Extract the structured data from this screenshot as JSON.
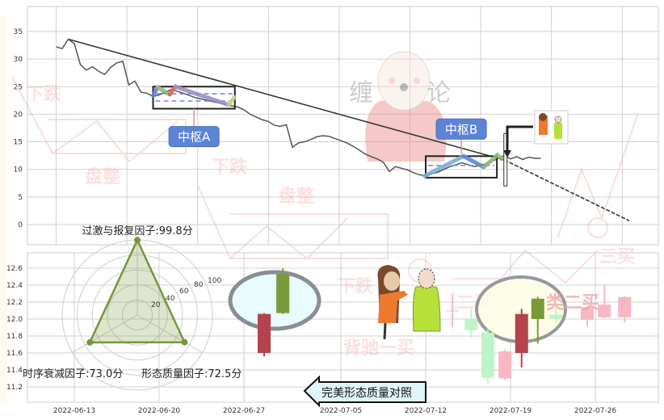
{
  "colors": {
    "price": "#555555",
    "trend": "#2f3a2f",
    "grid": "#d0d0d0",
    "hub_label_bg": "#5b84d6",
    "up": "#7a9a3a",
    "down": "#b5434b",
    "faint_up": "#bdf5c6",
    "faint_down": "#f7b8c4",
    "radar": "#76973b",
    "watermark": "#f3b6b6"
  },
  "watermarks": [
    "下跌",
    "盘整",
    "下跌",
    "盘整",
    "下跌",
    "背驰一买",
    "二买",
    "类二买",
    "三买",
    "缠",
    "论"
  ],
  "callout": {
    "label": "完美形态质量对照",
    "icon": "left-arrow-icon"
  },
  "chart_data": [
    {
      "type": "line",
      "panel": "top",
      "yticks": [
        0,
        5,
        10,
        15,
        20,
        25,
        30,
        35
      ],
      "ylim": [
        0,
        35
      ],
      "grid": true,
      "price": [
        [
          "2022-06-11 12:00",
          32.2
        ],
        [
          "2022-06-12 00:00",
          31.9
        ],
        [
          "2022-06-12 12:00",
          33.6
        ],
        [
          "2022-06-13 00:00",
          32.8
        ],
        [
          "2022-06-13 12:00",
          29.0
        ],
        [
          "2022-06-14 00:00",
          28.0
        ],
        [
          "2022-06-14 12:00",
          28.6
        ],
        [
          "2022-06-15 00:00",
          27.8
        ],
        [
          "2022-06-15 12:00",
          27.2
        ],
        [
          "2022-06-16 00:00",
          28.5
        ],
        [
          "2022-06-16 12:00",
          29.3
        ],
        [
          "2022-06-17 00:00",
          29.6
        ],
        [
          "2022-06-17 12:00",
          25.3
        ],
        [
          "2022-06-18 00:00",
          26.0
        ],
        [
          "2022-06-18 12:00",
          24.0
        ],
        [
          "2022-06-19 00:00",
          23.8
        ],
        [
          "2022-06-19 12:00",
          23.2
        ],
        [
          "2022-06-20 00:00",
          23.5
        ],
        [
          "2022-06-21 00:00",
          24.5
        ],
        [
          "2022-06-22 00:00",
          23.8
        ],
        [
          "2022-06-23 00:00",
          23.0
        ],
        [
          "2022-06-24 00:00",
          22.5
        ],
        [
          "2022-06-25 00:00",
          22.0
        ],
        [
          "2022-06-26 00:00",
          21.5
        ],
        [
          "2022-06-26 12:00",
          21.3
        ],
        [
          "2022-06-27 00:00",
          20.8
        ],
        [
          "2022-06-27 12:00",
          20.0
        ],
        [
          "2022-06-28 00:00",
          19.5
        ],
        [
          "2022-06-28 12:00",
          19.0
        ],
        [
          "2022-06-29 00:00",
          18.7
        ],
        [
          "2022-06-29 12:00",
          18.0
        ],
        [
          "2022-06-30 00:00",
          17.8
        ],
        [
          "2022-06-30 12:00",
          18.1
        ],
        [
          "2022-07-01 00:00",
          14.0
        ],
        [
          "2022-07-01 12:00",
          14.8
        ],
        [
          "2022-07-02 00:00",
          15.0
        ],
        [
          "2022-07-02 12:00",
          15.4
        ],
        [
          "2022-07-03 00:00",
          15.9
        ],
        [
          "2022-07-03 12:00",
          16.1
        ],
        [
          "2022-07-04 00:00",
          16.0
        ],
        [
          "2022-07-04 12:00",
          15.6
        ],
        [
          "2022-07-05 00:00",
          15.2
        ],
        [
          "2022-07-05 12:00",
          14.8
        ],
        [
          "2022-07-06 00:00",
          14.2
        ],
        [
          "2022-07-06 12:00",
          13.5
        ],
        [
          "2022-07-07 00:00",
          12.8
        ],
        [
          "2022-07-07 12:00",
          12.3
        ],
        [
          "2022-07-08 00:00",
          11.9
        ],
        [
          "2022-07-08 12:00",
          11.3
        ],
        [
          "2022-07-09 00:00",
          9.6
        ],
        [
          "2022-07-09 12:00",
          10.5
        ],
        [
          "2022-07-10 00:00",
          10.2
        ],
        [
          "2022-07-10 12:00",
          9.9
        ],
        [
          "2022-07-11 00:00",
          9.4
        ],
        [
          "2022-07-11 12:00",
          9.0
        ],
        [
          "2022-07-12 00:00",
          8.9
        ],
        [
          "2022-07-13 00:00",
          9.5
        ],
        [
          "2022-07-14 00:00",
          10.5
        ],
        [
          "2022-07-15 00:00",
          11.2
        ],
        [
          "2022-07-16 00:00",
          10.5
        ],
        [
          "2022-07-17 00:00",
          11.0
        ],
        [
          "2022-07-18 00:00",
          12.0
        ],
        [
          "2022-07-18 12:00",
          12.5
        ],
        [
          "2022-07-19 00:00",
          11.9
        ],
        [
          "2022-07-19 12:00",
          12.3
        ],
        [
          "2022-07-20 00:00",
          11.8
        ],
        [
          "2022-07-20 12:00",
          12.2
        ],
        [
          "2022-07-21 00:00",
          12.0
        ],
        [
          "2022-07-21 12:00",
          12.0
        ]
      ],
      "trendline": {
        "start": [
          "2022-06-12 12:00",
          33.6
        ],
        "solid_end": [
          "2022-07-18 12:00",
          11.7
        ],
        "end": [
          "2022-07-28 19:00",
          0.7
        ]
      },
      "hubs": [
        {
          "label": "中枢A",
          "start": "2022-06-19 12:00",
          "end": "2022-06-26 06:00",
          "upper": 25.0,
          "lower": 21.0,
          "dashed": [
            23.7,
            22.4
          ],
          "label_side": "below",
          "strokes": [
            {
              "color": "#5b84d6",
              "points": [
                [
                  "2022-06-19 12:00",
                  23.4
                ],
                [
                  "2022-06-19 21:00",
                  24.9
                ]
              ]
            },
            {
              "color": "#8fb97a",
              "points": [
                [
                  "2022-06-19 21:00",
                  24.9
                ],
                [
                  "2022-06-20 21:00",
                  23.6
                ]
              ]
            },
            {
              "color": "#d9694f",
              "points": [
                [
                  "2022-06-20 21:00",
                  23.6
                ],
                [
                  "2022-06-21 08:00",
                  25.0
                ]
              ]
            },
            {
              "color": "#9b8ec4",
              "points": [
                [
                  "2022-06-21 08:00",
                  25.0
                ],
                [
                  "2022-06-25 18:00",
                  21.7
                ]
              ]
            },
            {
              "color": "#c5d48a",
              "points": [
                [
                  "2022-06-25 18:00",
                  21.7
                ],
                [
                  "2022-06-26 05:00",
                  23.1
                ]
              ]
            }
          ]
        },
        {
          "label": "中枢B",
          "start": "2022-07-12 00:00",
          "end": "2022-07-17 21:00",
          "upper": 12.4,
          "lower": 8.5,
          "dashed": [
            10.7
          ],
          "label_side": "above",
          "strokes": [
            {
              "color": "#7aaed0",
              "points": [
                [
                  "2022-07-11 22:00",
                  8.8
                ],
                [
                  "2022-07-15 03:00",
                  12.4
                ]
              ]
            },
            {
              "color": "#5b84d6",
              "points": [
                [
                  "2022-07-15 03:00",
                  12.4
                ],
                [
                  "2022-07-16 19:00",
                  10.4
                ]
              ]
            },
            {
              "color": "#8fb97a",
              "points": [
                [
                  "2022-07-16 19:00",
                  10.4
                ],
                [
                  "2022-07-17 22:00",
                  12.6
                ],
                [
                  "2022-07-18 06:00",
                  11.9
                ]
              ]
            }
          ]
        }
      ],
      "marker": {
        "date": "2022-07-18 14:00",
        "high": 16.5,
        "low": 7.0
      }
    },
    {
      "type": "candlestick",
      "panel": "bottom",
      "yticks": [
        11.2,
        11.4,
        11.6,
        11.8,
        12.0,
        12.2,
        12.4,
        12.6
      ],
      "ylim": [
        11.15,
        12.75
      ],
      "xticks": [
        "2022-06-13",
        "2022-06-20",
        "2022-06-27",
        "2022-07-05",
        "2022-07-12",
        "2022-07-19",
        "2022-07-26"
      ],
      "grid": true,
      "candles": [
        {
          "date": "2022-06-28 16:00",
          "open": 12.06,
          "close": 11.6,
          "high": 12.07,
          "low": 11.56,
          "style": "strong"
        },
        {
          "date": "2022-06-30 05:00",
          "open": 12.07,
          "close": 12.53,
          "high": 12.6,
          "low": 12.06,
          "style": "strong"
        },
        {
          "date": "2022-07-14 05:00",
          "open": 12.1,
          "close": 12.1,
          "high": 12.3,
          "low": 11.9,
          "style": "faint_down"
        },
        {
          "date": "2022-07-15 18:00",
          "open": 11.87,
          "close": 12.0,
          "high": 12.12,
          "low": 11.78,
          "style": "faint"
        },
        {
          "date": "2022-07-17 03:00",
          "open": 11.31,
          "close": 11.84,
          "high": 11.88,
          "low": 11.24,
          "style": "faint"
        },
        {
          "date": "2022-07-18 13:00",
          "open": 11.62,
          "close": 11.3,
          "high": 11.64,
          "low": 11.28,
          "style": "faint"
        },
        {
          "date": "2022-07-19 22:00",
          "open": 12.06,
          "close": 11.6,
          "high": 12.12,
          "low": 11.43,
          "style": "strong"
        },
        {
          "date": "2022-07-21 06:00",
          "open": 12.0,
          "close": 12.24,
          "high": 12.26,
          "low": 11.71,
          "style": "strong"
        },
        {
          "date": "2022-07-22 18:00",
          "open": 12.0,
          "close": 12.05,
          "high": 12.12,
          "low": 11.95,
          "style": "faint"
        },
        {
          "date": "2022-07-25 08:00",
          "open": 12.14,
          "close": 11.99,
          "high": 12.15,
          "low": 11.91,
          "style": "faint"
        },
        {
          "date": "2022-07-26 18:00",
          "open": 12.17,
          "close": 12.02,
          "high": 12.41,
          "low": 12.01,
          "style": "faint"
        },
        {
          "date": "2022-07-28 10:00",
          "open": 12.26,
          "close": 12.02,
          "high": 12.27,
          "low": 11.96,
          "style": "faint"
        }
      ]
    },
    {
      "type": "radar",
      "rlim": [
        0,
        100
      ],
      "ring_labels": [
        "20",
        "40",
        "60",
        "80",
        "100"
      ],
      "axes": [
        {
          "label": "过激与报复因子:99.8分",
          "value": 99.8
        },
        {
          "label": "时序衰减因子:73.0分",
          "value": 73.0
        },
        {
          "label": "形态质量因子:72.5分",
          "value": 72.5
        }
      ]
    }
  ]
}
